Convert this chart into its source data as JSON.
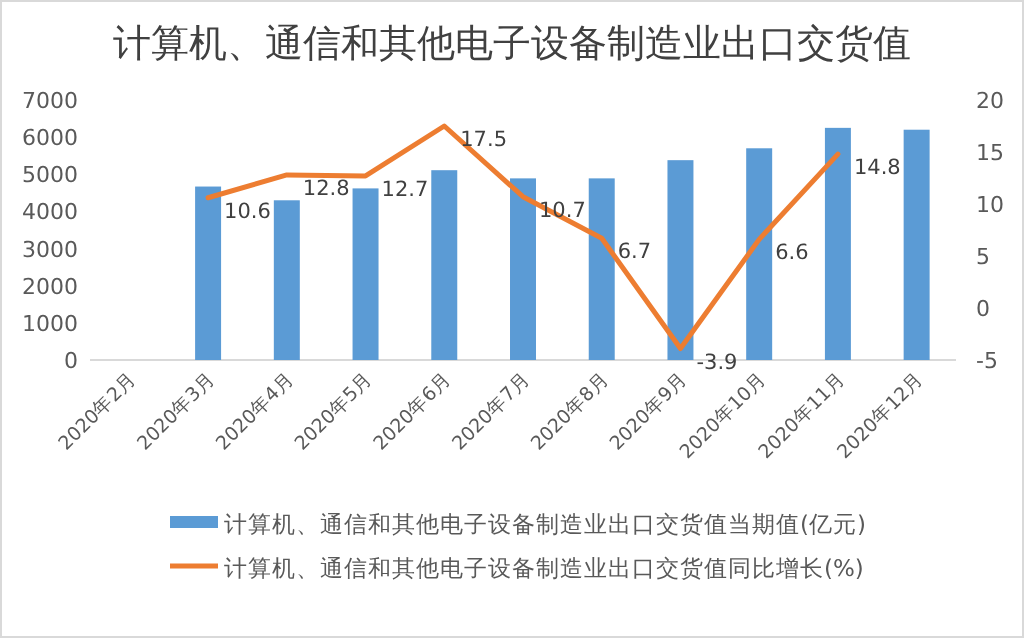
{
  "chart_data": {
    "type": "bar",
    "title": "计算机、通信和其他电子设备制造业出口交货值",
    "categories": [
      "2020年2月",
      "2020年3月",
      "2020年4月",
      "2020年5月",
      "2020年6月",
      "2020年7月",
      "2020年8月",
      "2020年9月",
      "2020年10月",
      "2020年11月",
      "2020年12月"
    ],
    "series": [
      {
        "name": "计算机、通信和其他电子设备制造业出口交货值当期值(亿元)",
        "color": "#5b9bd5",
        "values": [
          null,
          4670,
          4300,
          4620,
          5110,
          4890,
          4890,
          5380,
          5700,
          6250,
          6200
        ]
      },
      {
        "name": "计算机、通信和其他电子设备制造业出口交货值同比增长(%)",
        "type": "line",
        "axis": "y2",
        "color": "#ed7d31",
        "data_labels": true,
        "values": [
          null,
          10.6,
          12.8,
          12.7,
          17.5,
          10.7,
          6.7,
          -3.9,
          6.6,
          14.8,
          null
        ]
      }
    ],
    "ylim": [
      0,
      7000
    ],
    "yticks": [
      0,
      1000,
      2000,
      3000,
      4000,
      5000,
      6000,
      7000
    ],
    "y2lim": [
      -5,
      20
    ],
    "y2ticks": [
      -5,
      0,
      5,
      10,
      15,
      20
    ],
    "grid": false,
    "legend": "bottom",
    "marker": "none",
    "line_style": "solid"
  }
}
